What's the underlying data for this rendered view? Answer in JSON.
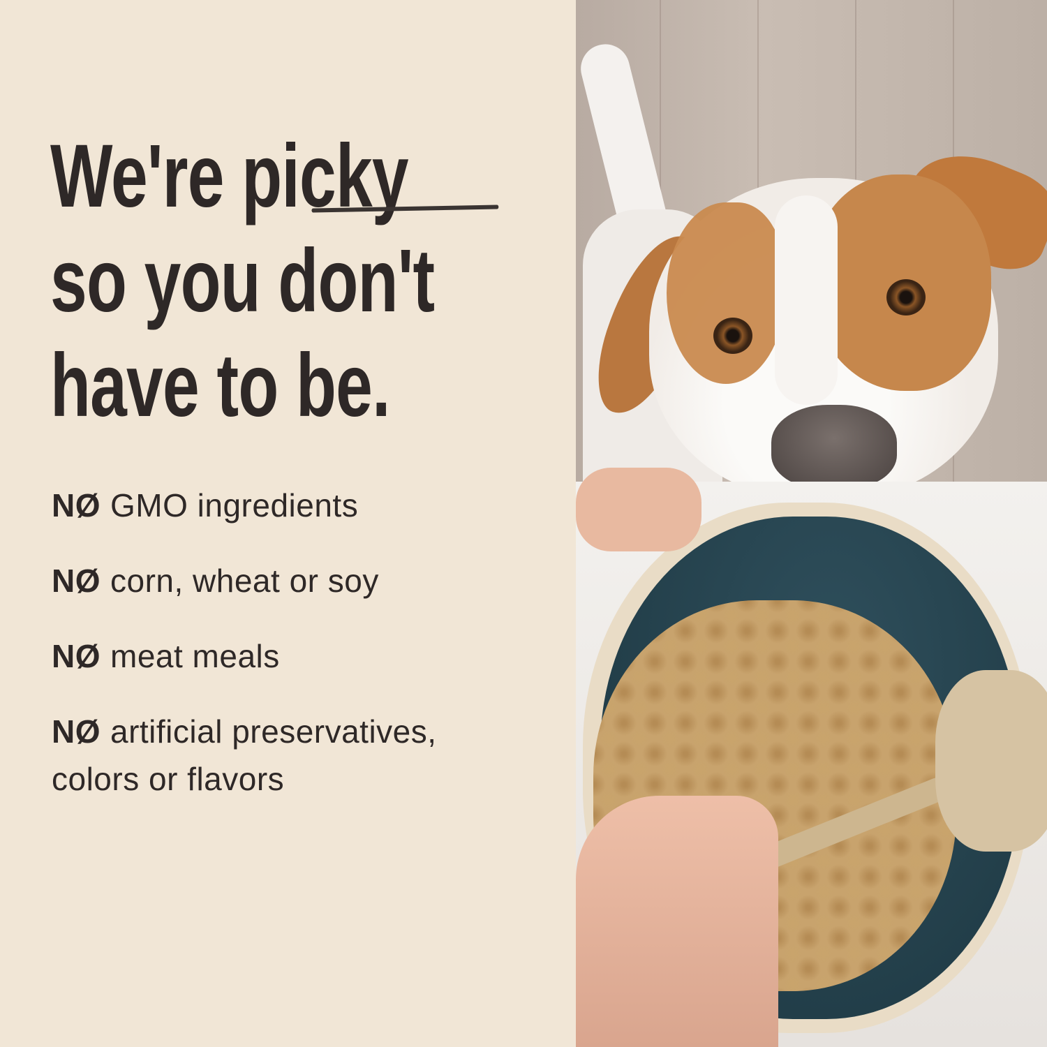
{
  "headline": {
    "line1_pre": "We're ",
    "line1_emph": "picky",
    "line2": "so you don't",
    "line3": "have to be."
  },
  "claims": [
    {
      "prefix": "NØ",
      "text": "GMO ingredients"
    },
    {
      "prefix": "NØ",
      "text": "corn, wheat or soy"
    },
    {
      "prefix": "NØ",
      "text": "meat meals"
    },
    {
      "prefix": "NØ",
      "text": "artificial preservatives, colors or flavors"
    }
  ],
  "colors": {
    "background": "#f1e6d6",
    "text": "#2e2827"
  }
}
